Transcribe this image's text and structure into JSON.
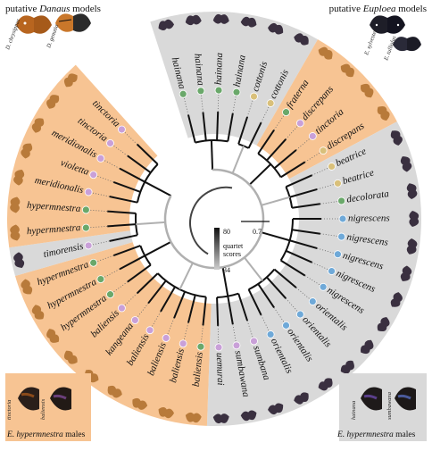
{
  "header_left": {
    "prefix": "putative",
    "genus": "Danaus",
    "suffix": "models"
  },
  "header_right": {
    "prefix": "putative",
    "genus": "Euploea",
    "suffix": "models"
  },
  "model_labels_left": [
    "D. chrysippus",
    "D. genutia"
  ],
  "model_labels_right": [
    "E. sylvester",
    "E. tulliolus"
  ],
  "tips": [
    {
      "name": "hainana",
      "clade": "gray",
      "dot": "#6aa86a"
    },
    {
      "name": "hainana",
      "clade": "gray",
      "dot": "#6aa86a"
    },
    {
      "name": "hainana",
      "clade": "gray",
      "dot": "#6aa86a"
    },
    {
      "name": "hainana",
      "clade": "gray",
      "dot": "#6aa86a"
    },
    {
      "name": "cottonis",
      "clade": "gray",
      "dot": "#d9c07a"
    },
    {
      "name": "cottonis",
      "clade": "gray",
      "dot": "#d9c07a"
    },
    {
      "name": "fraterna",
      "clade": "orange",
      "dot": "#6aa86a"
    },
    {
      "name": "discrepans",
      "clade": "orange",
      "dot": "#c9a0d8"
    },
    {
      "name": "tinctoria",
      "clade": "orange",
      "dot": "#c9a0d8"
    },
    {
      "name": "discrepans",
      "clade": "orange",
      "dot": "#d9c07a"
    },
    {
      "name": "beatrice",
      "clade": "gray",
      "dot": "#d9c07a"
    },
    {
      "name": "beatrice",
      "clade": "gray",
      "dot": "#d9c07a"
    },
    {
      "name": "decolorata",
      "clade": "gray",
      "dot": "#6aa86a"
    },
    {
      "name": "nigrescens",
      "clade": "gray",
      "dot": "#6fa9d8"
    },
    {
      "name": "nigrescens",
      "clade": "gray",
      "dot": "#6fa9d8"
    },
    {
      "name": "nigrescens",
      "clade": "gray",
      "dot": "#6fa9d8"
    },
    {
      "name": "nigrescens",
      "clade": "gray",
      "dot": "#6fa9d8"
    },
    {
      "name": "nigrescens",
      "clade": "gray",
      "dot": "#6fa9d8"
    },
    {
      "name": "orientalis",
      "clade": "gray",
      "dot": "#6fa9d8"
    },
    {
      "name": "orientalis",
      "clade": "gray",
      "dot": "#6fa9d8"
    },
    {
      "name": "orientalis",
      "clade": "gray",
      "dot": "#6fa9d8"
    },
    {
      "name": "orientalis",
      "clade": "gray",
      "dot": "#6fa9d8"
    },
    {
      "name": "sumbana",
      "clade": "gray",
      "dot": "#c9a0d8"
    },
    {
      "name": "sumbawana",
      "clade": "gray",
      "dot": "#c9a0d8"
    },
    {
      "name": "uemurai",
      "clade": "gray",
      "dot": "#c9a0d8"
    },
    {
      "name": "baliensis",
      "clade": "orange",
      "dot": "#6aa86a"
    },
    {
      "name": "baliensis",
      "clade": "orange",
      "dot": "#c9a0d8"
    },
    {
      "name": "baliensis",
      "clade": "orange",
      "dot": "#c9a0d8"
    },
    {
      "name": "baliensis",
      "clade": "orange",
      "dot": "#c9a0d8"
    },
    {
      "name": "kangeana",
      "clade": "orange",
      "dot": "#c9a0d8"
    },
    {
      "name": "baliensis",
      "clade": "orange",
      "dot": "#c9a0d8"
    },
    {
      "name": "hypermnestra",
      "clade": "orange",
      "dot": "#6aa86a"
    },
    {
      "name": "hypermnestra",
      "clade": "orange",
      "dot": "#6aa86a"
    },
    {
      "name": "hypermnestra",
      "clade": "orange",
      "dot": "#6aa86a"
    },
    {
      "name": "timorensis",
      "clade": "gray",
      "dot": "#c9a0d8"
    },
    {
      "name": "hypermnestra",
      "clade": "orange",
      "dot": "#6aa86a"
    },
    {
      "name": "hypermnestra",
      "clade": "orange",
      "dot": "#6aa86a"
    },
    {
      "name": "meridionalis",
      "clade": "orange",
      "dot": "#c9a0d8"
    },
    {
      "name": "violetta",
      "clade": "orange",
      "dot": "#c9a0d8"
    },
    {
      "name": "meridionalis",
      "clade": "orange",
      "dot": "#c9a0d8"
    },
    {
      "name": "tinctoria",
      "clade": "orange",
      "dot": "#c9a0d8"
    },
    {
      "name": "tinctoria",
      "clade": "orange",
      "dot": "#c9a0d8"
    }
  ],
  "legend": {
    "top_value": "80",
    "label_line1": "quartet",
    "label_line2": "scores",
    "bottom_value": "34"
  },
  "scale_bar": "0.7",
  "inset_left": {
    "labels": [
      "tinctoria",
      "baliensis"
    ],
    "species": "E. hypermnestra",
    "suffix": "males"
  },
  "inset_right": {
    "labels": [
      "hainana",
      "sumbawana"
    ],
    "species": "E. hypermnestra",
    "suffix": "males"
  },
  "colors": {
    "orange": "#f7c493",
    "gray": "#d9d9d9",
    "branch_dark": "#111111",
    "branch_light": "#b0b0b0"
  }
}
